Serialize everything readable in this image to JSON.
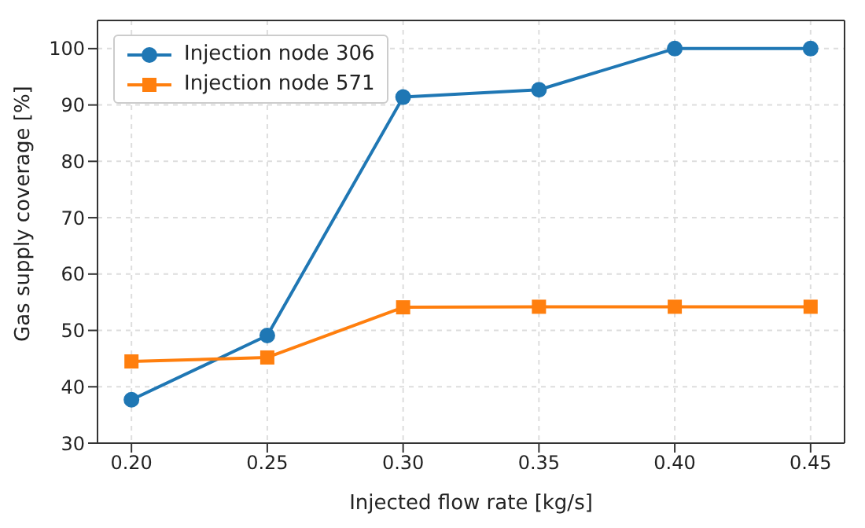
{
  "chart_data": {
    "type": "line",
    "xlabel": "Injected flow rate [kg/s]",
    "ylabel": "Gas supply coverage [%]",
    "x": [
      0.2,
      0.25,
      0.3,
      0.35,
      0.4,
      0.45
    ],
    "series": [
      {
        "name": "Injection node 306",
        "color": "#1f77b4",
        "marker": "circle",
        "values": [
          37.7,
          49.1,
          91.4,
          92.7,
          100,
          100
        ]
      },
      {
        "name": "Injection node 571",
        "color": "#ff7f0e",
        "marker": "square",
        "values": [
          44.5,
          45.2,
          54.1,
          54.2,
          54.2,
          54.2
        ]
      }
    ],
    "xlim": [
      0.1875,
      0.4625
    ],
    "ylim": [
      30,
      105
    ],
    "xticks": [
      {
        "value": 0.2,
        "label": "0.20"
      },
      {
        "value": 0.25,
        "label": "0.25"
      },
      {
        "value": 0.3,
        "label": "0.30"
      },
      {
        "value": 0.35,
        "label": "0.35"
      },
      {
        "value": 0.4,
        "label": "0.40"
      },
      {
        "value": 0.45,
        "label": "0.45"
      }
    ],
    "yticks": [
      30,
      40,
      50,
      60,
      70,
      80,
      90,
      100
    ],
    "grid": true,
    "legend": "top left",
    "line_style": "solid"
  }
}
